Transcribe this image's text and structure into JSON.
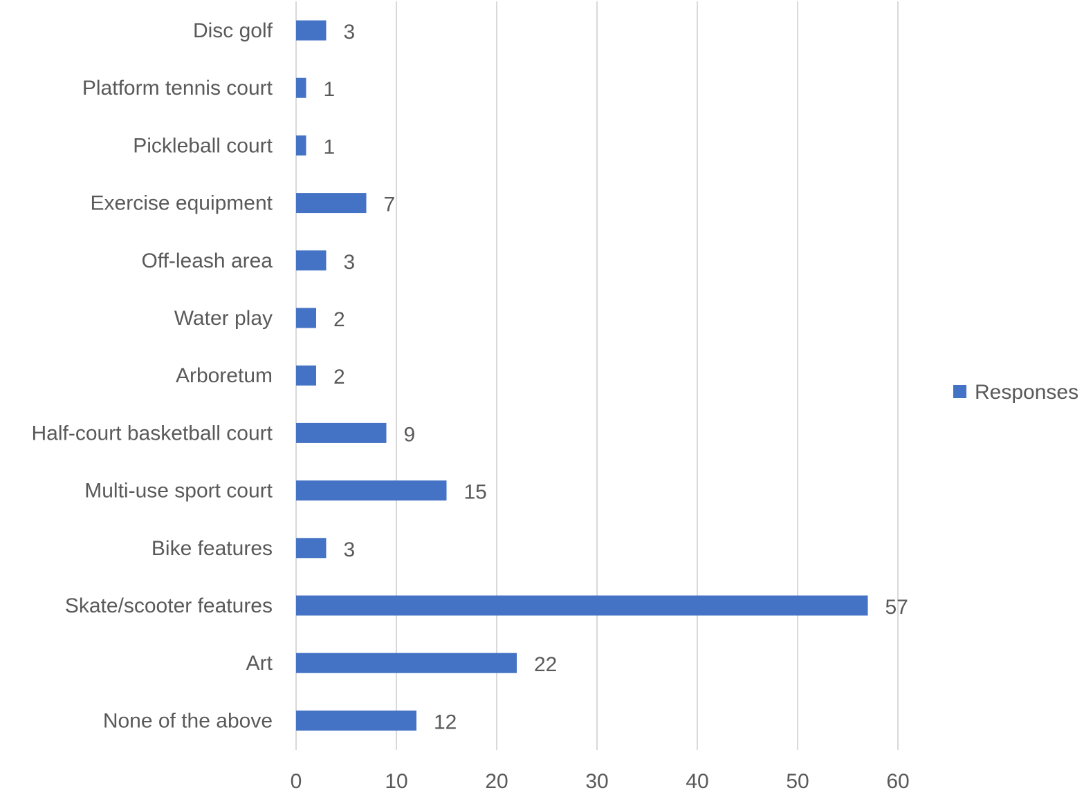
{
  "chart_data": {
    "type": "bar",
    "orientation": "horizontal",
    "categories": [
      "Disc golf",
      "Platform tennis court",
      "Pickleball court",
      "Exercise equipment",
      "Off-leash area",
      "Water play",
      "Arboretum",
      "Half-court basketball court",
      "Multi-use sport court",
      "Bike features",
      "Skate/scooter features",
      "Art",
      "None of the above"
    ],
    "series": [
      {
        "name": "Responses",
        "values": [
          3,
          1,
          1,
          7,
          3,
          2,
          2,
          9,
          15,
          3,
          57,
          22,
          12
        ],
        "color": "#4472C4"
      }
    ],
    "title": "",
    "xlabel": "",
    "ylabel": "",
    "xlim": [
      0,
      60
    ],
    "ticks": [
      0,
      10,
      20,
      30,
      40,
      50,
      60
    ],
    "tick_labels": [
      "0",
      "10",
      "20",
      "30",
      "40",
      "50",
      "60"
    ],
    "data_labels": true,
    "grid": "vertical",
    "legend": "right"
  }
}
